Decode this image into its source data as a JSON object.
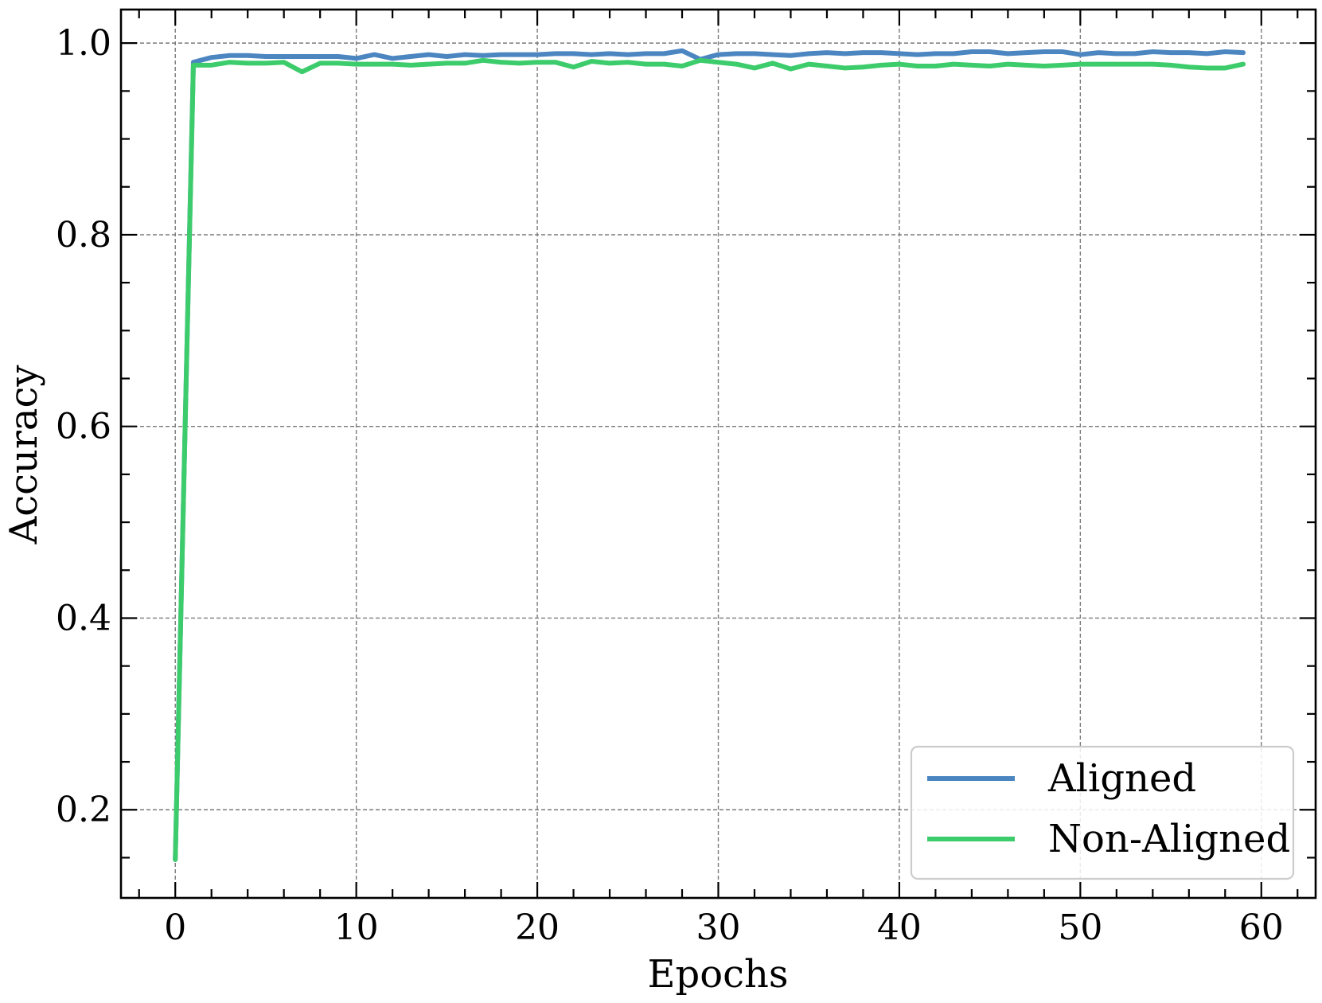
{
  "chart_data": {
    "type": "line",
    "title": "",
    "xlabel": "Epochs",
    "ylabel": "Accuracy",
    "xlim": [
      -3,
      63
    ],
    "ylim": [
      0.108,
      1.035
    ],
    "xticks": [
      0,
      10,
      20,
      30,
      40,
      50,
      60
    ],
    "xtick_labels": [
      "0",
      "10",
      "20",
      "30",
      "40",
      "50",
      "60"
    ],
    "yticks": [
      0.2,
      0.4,
      0.6,
      0.8,
      1.0
    ],
    "ytick_labels": [
      "0.2",
      "0.4",
      "0.6",
      "0.8",
      "1.0"
    ],
    "grid": true,
    "legend_position": "lower-right",
    "x": [
      0,
      1,
      2,
      3,
      4,
      5,
      6,
      7,
      8,
      9,
      10,
      11,
      12,
      13,
      14,
      15,
      16,
      17,
      18,
      19,
      20,
      21,
      22,
      23,
      24,
      25,
      26,
      27,
      28,
      29,
      30,
      31,
      32,
      33,
      34,
      35,
      36,
      37,
      38,
      39,
      40,
      41,
      42,
      43,
      44,
      45,
      46,
      47,
      48,
      49,
      50,
      51,
      52,
      53,
      54,
      55,
      56,
      57,
      58,
      59
    ],
    "series": [
      {
        "name": "Aligned",
        "color": "#4C86C1",
        "values": [
          0.148,
          0.98,
          0.985,
          0.987,
          0.987,
          0.986,
          0.986,
          0.986,
          0.986,
          0.986,
          0.984,
          0.988,
          0.984,
          0.986,
          0.988,
          0.986,
          0.988,
          0.987,
          0.988,
          0.988,
          0.988,
          0.989,
          0.989,
          0.988,
          0.989,
          0.988,
          0.989,
          0.989,
          0.992,
          0.983,
          0.988,
          0.989,
          0.989,
          0.988,
          0.987,
          0.989,
          0.99,
          0.989,
          0.99,
          0.99,
          0.989,
          0.988,
          0.989,
          0.989,
          0.991,
          0.991,
          0.989,
          0.99,
          0.991,
          0.991,
          0.988,
          0.99,
          0.989,
          0.989,
          0.991,
          0.99,
          0.99,
          0.989,
          0.991,
          0.99
        ]
      },
      {
        "name": "Non-Aligned",
        "color": "#3DCC6C",
        "values": [
          0.148,
          0.977,
          0.977,
          0.98,
          0.979,
          0.979,
          0.98,
          0.97,
          0.979,
          0.979,
          0.978,
          0.978,
          0.978,
          0.977,
          0.978,
          0.979,
          0.979,
          0.982,
          0.98,
          0.979,
          0.98,
          0.98,
          0.975,
          0.981,
          0.979,
          0.98,
          0.978,
          0.978,
          0.976,
          0.982,
          0.98,
          0.978,
          0.974,
          0.979,
          0.973,
          0.978,
          0.976,
          0.974,
          0.975,
          0.977,
          0.978,
          0.976,
          0.976,
          0.978,
          0.977,
          0.976,
          0.978,
          0.977,
          0.976,
          0.977,
          0.978,
          0.978,
          0.978,
          0.978,
          0.978,
          0.977,
          0.975,
          0.974,
          0.974,
          0.978
        ]
      }
    ]
  }
}
